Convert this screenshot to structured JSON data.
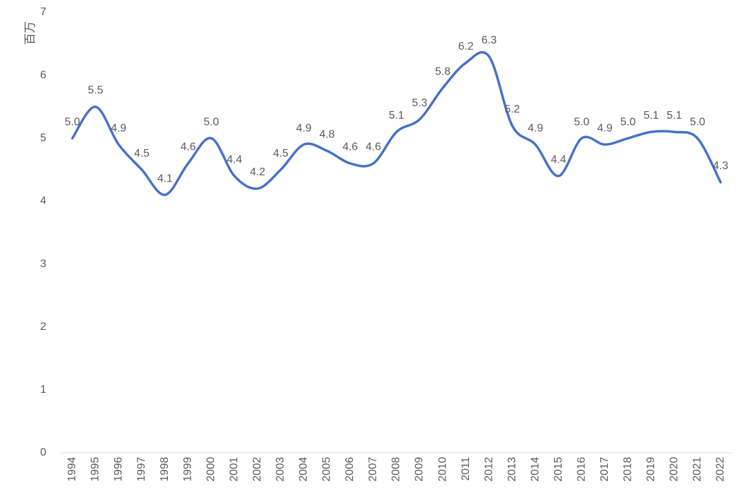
{
  "chart_data": {
    "type": "line",
    "smooth": true,
    "title": "",
    "xlabel": "",
    "ylabel": "百万",
    "ylim": [
      0,
      7
    ],
    "yticks": [
      0,
      1,
      2,
      3,
      4,
      5,
      6,
      7
    ],
    "grid": false,
    "legend": "none",
    "line_color": "#4472C4",
    "categories": [
      "1994",
      "1995",
      "1996",
      "1997",
      "1998",
      "1999",
      "2000",
      "2001",
      "2002",
      "2003",
      "2004",
      "2005",
      "2006",
      "2007",
      "2008",
      "2009",
      "2010",
      "2011",
      "2012",
      "2013",
      "2014",
      "2015",
      "2016",
      "2017",
      "2018",
      "2019",
      "2020",
      "2021",
      "2022"
    ],
    "series": [
      {
        "values": [
          5.0,
          5.5,
          4.9,
          4.5,
          4.1,
          4.6,
          5.0,
          4.4,
          4.2,
          4.5,
          4.9,
          4.8,
          4.6,
          4.6,
          5.1,
          5.3,
          5.8,
          6.2,
          6.3,
          5.2,
          4.9,
          4.4,
          5.0,
          4.9,
          5.0,
          5.1,
          5.1,
          5.0,
          4.3
        ],
        "data_labels": [
          "5.0",
          "5.5",
          "4.9",
          "4.5",
          "4.1",
          "4.6",
          "5.0",
          "4.4",
          "4.2",
          "4.5",
          "4.9",
          "4.8",
          "4.6",
          "4.6",
          "5.1",
          "5.3",
          "5.8",
          "6.2",
          "6.3",
          "5.2",
          "4.9",
          "4.4",
          "5.0",
          "4.9",
          "5.0",
          "5.1",
          "5.1",
          "5.0",
          "4.3"
        ]
      }
    ]
  }
}
